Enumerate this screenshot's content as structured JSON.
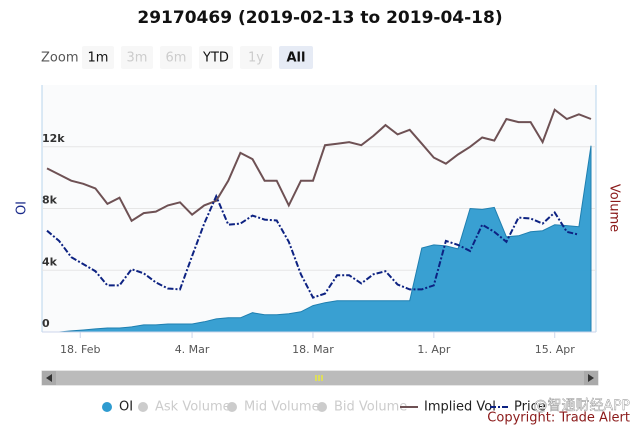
{
  "chart_data": {
    "type": "stock",
    "title": "29170469 (2019-02-13 to 2019-04-18)",
    "range_selector": {
      "label": "Zoom",
      "buttons": [
        {
          "text": "1m",
          "state": "enabled"
        },
        {
          "text": "3m",
          "state": "disabled"
        },
        {
          "text": "6m",
          "state": "disabled"
        },
        {
          "text": "YTD",
          "state": "enabled"
        },
        {
          "text": "1y",
          "state": "disabled"
        },
        {
          "text": "All",
          "state": "selected"
        }
      ]
    },
    "y_label": "OI",
    "y2_label": "Volume",
    "x": [
      "2019-02-13",
      "2019-02-14",
      "2019-02-15",
      "2019-02-19",
      "2019-02-20",
      "2019-02-21",
      "2019-02-22",
      "2019-02-25",
      "2019-02-26",
      "2019-02-27",
      "2019-02-28",
      "2019-03-01",
      "2019-03-04",
      "2019-03-05",
      "2019-03-06",
      "2019-03-07",
      "2019-03-08",
      "2019-03-11",
      "2019-03-12",
      "2019-03-13",
      "2019-03-14",
      "2019-03-15",
      "2019-03-18",
      "2019-03-19",
      "2019-03-20",
      "2019-03-21",
      "2019-03-22",
      "2019-03-25",
      "2019-03-26",
      "2019-03-27",
      "2019-03-28",
      "2019-03-29",
      "2019-04-01",
      "2019-04-02",
      "2019-04-03",
      "2019-04-04",
      "2019-04-05",
      "2019-04-08",
      "2019-04-09",
      "2019-04-10",
      "2019-04-11",
      "2019-04-12",
      "2019-04-15",
      "2019-04-16",
      "2019-04-17",
      "2019-04-18"
    ],
    "xticks": [
      {
        "value": "2019-02-18",
        "label": "18. Feb"
      },
      {
        "value": "2019-03-04",
        "label": "4. Mar"
      },
      {
        "value": "2019-03-18",
        "label": "18. Mar"
      },
      {
        "value": "2019-04-01",
        "label": "1. Apr"
      },
      {
        "value": "2019-04-15",
        "label": "15. Apr"
      }
    ],
    "ylim": [
      0,
      16000
    ],
    "yticks": [
      0,
      {
        "value": 4000,
        "label": "4k"
      },
      {
        "value": 8000,
        "label": "8k"
      },
      {
        "value": 12000,
        "label": "12k"
      }
    ],
    "grid": true,
    "series": [
      {
        "name": "OI",
        "kind": "area",
        "color": "#2e9bd0",
        "visible": true,
        "values": [
          0,
          0,
          70,
          130,
          200,
          260,
          260,
          330,
          460,
          460,
          520,
          520,
          520,
          660,
          850,
          920,
          920,
          1250,
          1120,
          1120,
          1180,
          1310,
          1710,
          1900,
          2030,
          2030,
          2030,
          2030,
          2030,
          2030,
          2030,
          5440,
          5640,
          5580,
          5380,
          8000,
          7940,
          8070,
          6170,
          6230,
          6490,
          6560,
          6950,
          6890,
          6820,
          12070
        ]
      },
      {
        "name": "Ask Volume",
        "kind": "column",
        "color": "#cccccc",
        "visible": false
      },
      {
        "name": "Mid Volume",
        "kind": "column",
        "color": "#cccccc",
        "visible": false
      },
      {
        "name": "Bid Volume",
        "kind": "column",
        "color": "#cccccc",
        "visible": false
      },
      {
        "name": "Implied Vol",
        "kind": "line",
        "color": "#6e5154",
        "visible": true,
        "values": [
          10600,
          10200,
          9800,
          9600,
          9300,
          8300,
          8700,
          7200,
          7700,
          7800,
          8200,
          8400,
          7600,
          8200,
          8500,
          9800,
          11600,
          11200,
          9800,
          9800,
          8200,
          9800,
          9800,
          12100,
          12200,
          12300,
          12100,
          12700,
          13400,
          12800,
          13100,
          12200,
          11300,
          10900,
          11500,
          12000,
          12600,
          12400,
          13800,
          13600,
          13600,
          12300,
          14400,
          13800,
          14100,
          13800
        ]
      },
      {
        "name": "Price",
        "kind": "dashed-line",
        "color": "#0d2282",
        "visible": true,
        "values": [
          6560,
          5900,
          4850,
          4400,
          3940,
          3020,
          3020,
          4070,
          3800,
          3210,
          2820,
          2760,
          4920,
          7020,
          8790,
          6950,
          7020,
          7540,
          7280,
          7220,
          5840,
          3740,
          2230,
          2490,
          3670,
          3670,
          3150,
          3740,
          3940,
          3080,
          2760,
          2760,
          3020,
          5900,
          5640,
          5250,
          6950,
          6490,
          5840,
          7410,
          7350,
          7020,
          7740,
          6490,
          6300,
          null
        ]
      }
    ],
    "watermark": "@智通财经APP",
    "credits": "Copyright: Trade Alert"
  }
}
